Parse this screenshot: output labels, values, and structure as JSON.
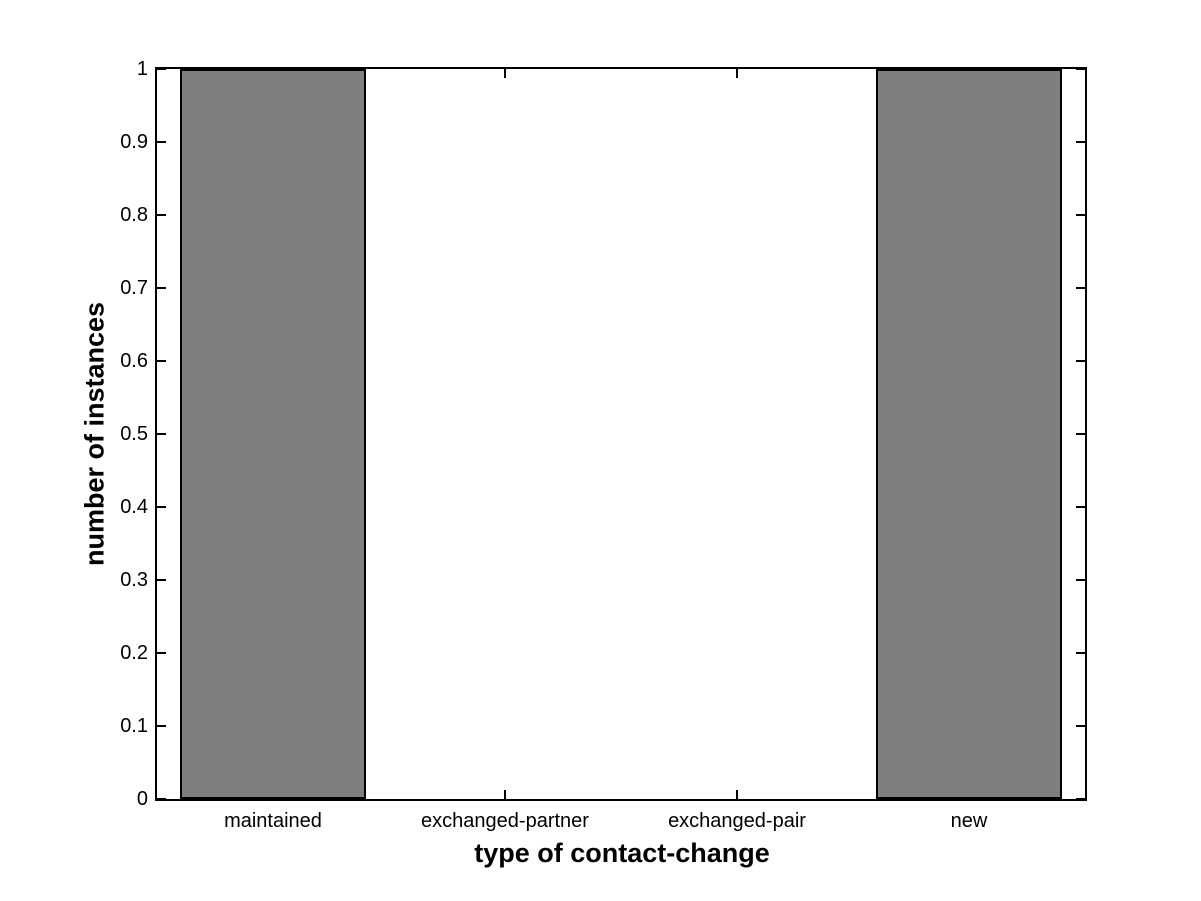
{
  "figure": {
    "background": "#ffffff"
  },
  "chart_data": {
    "type": "bar",
    "title": "",
    "xlabel": "type of contact-change",
    "ylabel": "number of instances",
    "categories": [
      "maintained",
      "exchanged-partner",
      "exchanged-pair",
      "new"
    ],
    "values": [
      1,
      0,
      0,
      1
    ],
    "ylim": [
      0,
      1
    ],
    "ytick_step": 0.1,
    "ytick_labels": [
      "0",
      "0.1",
      "0.2",
      "0.3",
      "0.4",
      "0.5",
      "0.6",
      "0.7",
      "0.8",
      "0.9",
      "1"
    ],
    "xtick_labels": [
      "maintained",
      "exchanged-partner",
      "exchanged-pair",
      "new"
    ],
    "grid": false,
    "legend": false,
    "bar_width_fraction": 0.8,
    "colors": {
      "bar_fill": "#7f7f7f",
      "bar_edge": "#000000",
      "axis": "#000000",
      "text": "#000000",
      "background": "#ffffff"
    }
  }
}
